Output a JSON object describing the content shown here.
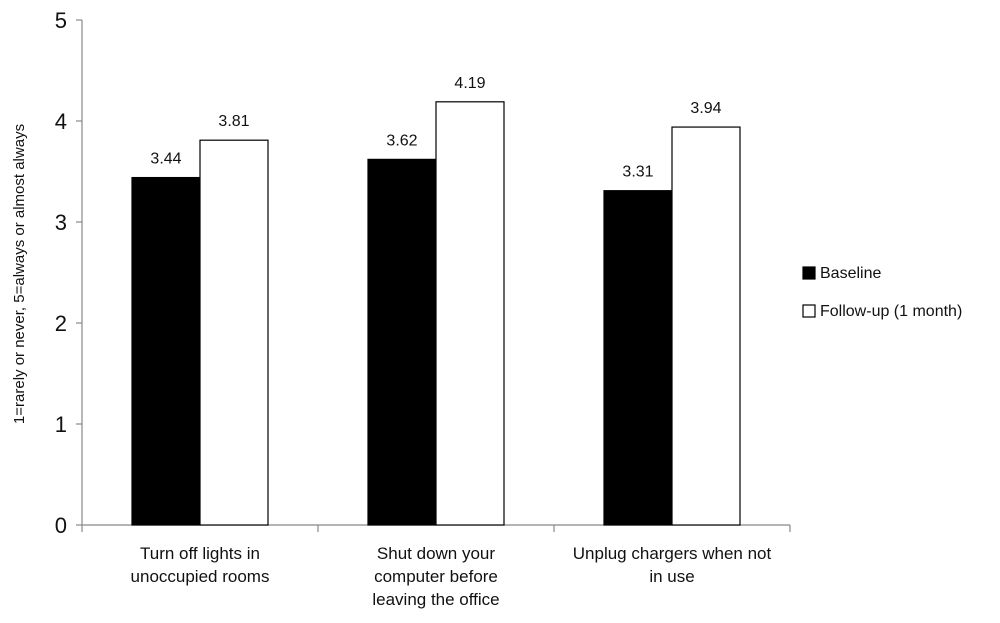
{
  "chart_data": {
    "type": "bar",
    "categories": [
      [
        "Turn off lights in",
        "unoccupied rooms"
      ],
      [
        "Shut down your",
        "computer before",
        "leaving the office"
      ],
      [
        "Unplug chargers when not",
        "in use"
      ]
    ],
    "series": [
      {
        "name": "Baseline",
        "values": [
          3.44,
          3.62,
          3.31
        ],
        "color": "#000000"
      },
      {
        "name": "Follow-up (1 month)",
        "values": [
          3.81,
          4.19,
          3.94
        ],
        "color": "#ffffff"
      }
    ],
    "data_labels": [
      [
        "3.44",
        "3.62",
        "3.31"
      ],
      [
        "3.81",
        "4.19",
        "3.94"
      ]
    ],
    "yticks": [
      "0",
      "1",
      "2",
      "3",
      "4",
      "5"
    ],
    "ylim": [
      0,
      5
    ],
    "ylabel": "1=rarely or never, 5=always or almost always",
    "xlabel": "",
    "title": "",
    "grid": false,
    "legend_position": "right"
  }
}
